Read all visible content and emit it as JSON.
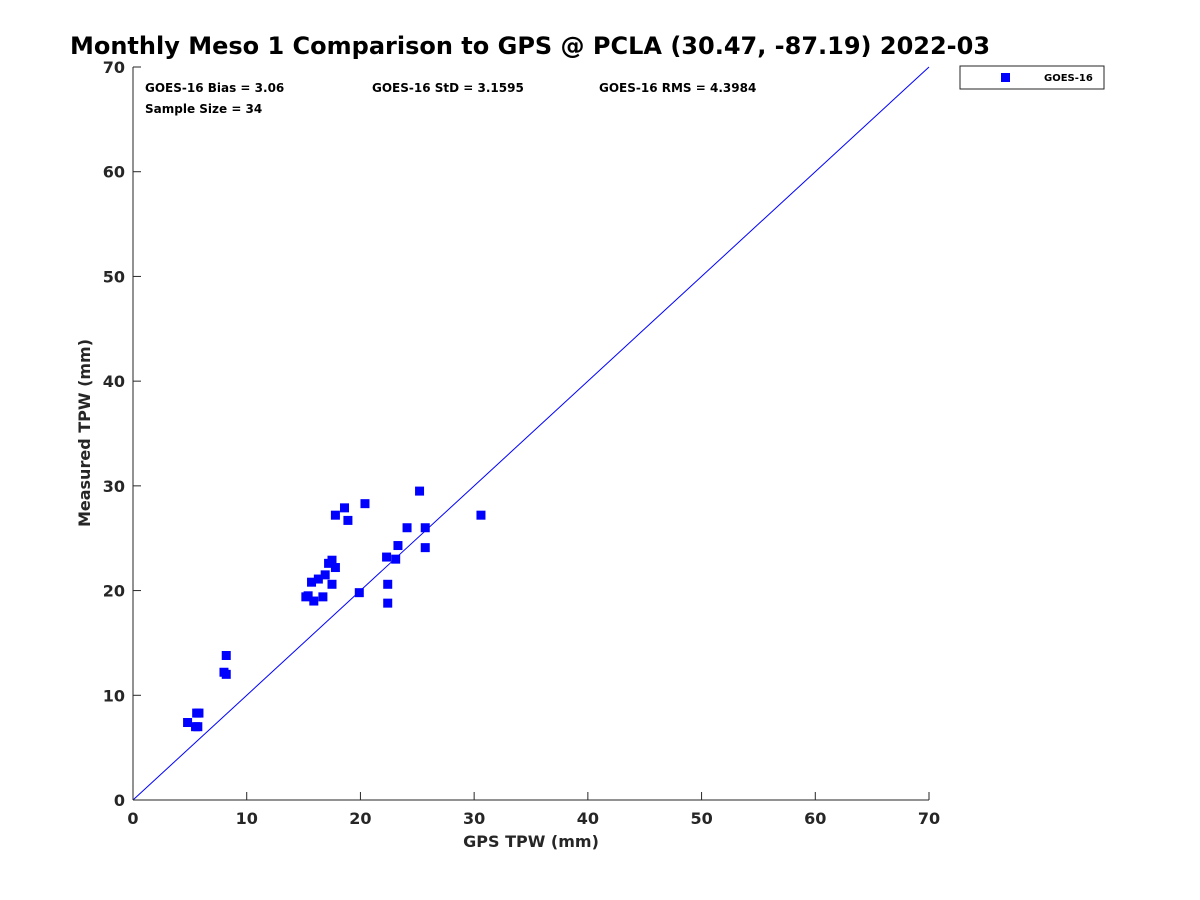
{
  "chart_data": {
    "type": "scatter",
    "title": "Monthly Meso 1 Comparison to GPS @ PCLA (30.47, -87.19) 2022-03",
    "xlabel": "GPS TPW (mm)",
    "ylabel": "Measured TPW (mm)",
    "xlim": [
      0,
      70
    ],
    "ylim": [
      0,
      70
    ],
    "xticks": [
      "0",
      "10",
      "20",
      "30",
      "40",
      "50",
      "60",
      "70"
    ],
    "yticks": [
      "0",
      "10",
      "20",
      "30",
      "40",
      "50",
      "60",
      "70"
    ],
    "grid": false,
    "legend_position": "top-right outside",
    "reference_line": {
      "from": [
        0,
        0
      ],
      "to": [
        70,
        70
      ],
      "color": "#0000ff"
    },
    "stats": {
      "bias": "GOES-16 Bias = 3.06",
      "std": "GOES-16 StD = 3.1595",
      "rms": "GOES-16 RMS = 4.3984",
      "sample": "Sample Size = 34"
    },
    "series": [
      {
        "name": "GOES-16",
        "color": "#0000ff",
        "marker": "square",
        "points": [
          [
            4.8,
            7.4
          ],
          [
            5.5,
            7.0
          ],
          [
            5.7,
            7.0
          ],
          [
            5.6,
            8.3
          ],
          [
            5.8,
            8.3
          ],
          [
            8.0,
            12.2
          ],
          [
            8.2,
            12.0
          ],
          [
            8.2,
            13.8
          ],
          [
            15.2,
            19.4
          ],
          [
            15.4,
            19.5
          ],
          [
            15.9,
            19.0
          ],
          [
            15.7,
            20.8
          ],
          [
            16.3,
            21.1
          ],
          [
            16.7,
            19.4
          ],
          [
            16.9,
            21.5
          ],
          [
            17.2,
            22.6
          ],
          [
            17.5,
            22.9
          ],
          [
            17.5,
            20.6
          ],
          [
            17.8,
            22.2
          ],
          [
            17.8,
            27.2
          ],
          [
            18.6,
            27.9
          ],
          [
            18.9,
            26.7
          ],
          [
            19.9,
            19.8
          ],
          [
            20.4,
            28.3
          ],
          [
            22.3,
            23.2
          ],
          [
            22.4,
            20.6
          ],
          [
            22.4,
            18.8
          ],
          [
            23.1,
            23.0
          ],
          [
            23.3,
            24.3
          ],
          [
            24.1,
            26.0
          ],
          [
            25.2,
            29.5
          ],
          [
            25.7,
            26.0
          ],
          [
            25.7,
            24.1
          ],
          [
            30.6,
            27.2
          ]
        ]
      }
    ]
  }
}
